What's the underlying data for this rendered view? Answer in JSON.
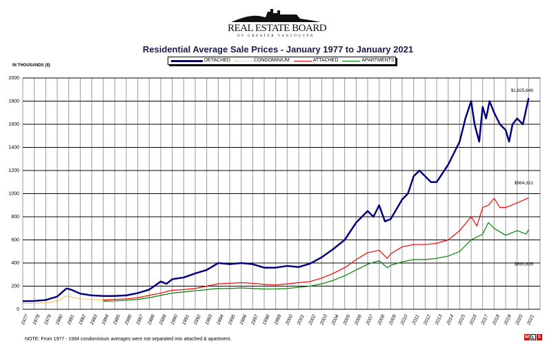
{
  "logo": {
    "name": "REAL ESTATE BOARD",
    "sub": "OF GREATER VANCOUVER"
  },
  "chart_data": {
    "type": "line",
    "title": "Residential Average Sale Prices  -  January 1977 to January 2021",
    "ylabel": "IN THOUSANDS ($)",
    "xlabel": "",
    "ylim": [
      0,
      2000
    ],
    "yticks": [
      0,
      200,
      400,
      600,
      800,
      1000,
      1200,
      1400,
      1600,
      1800,
      2000
    ],
    "xticks": [
      "1977",
      "1978",
      "1979",
      "1980",
      "1981",
      "1982",
      "1983",
      "1984",
      "1985",
      "1986",
      "1987",
      "1988",
      "1989",
      "1990",
      "1991",
      "1992",
      "1993",
      "1994",
      "1995",
      "1996",
      "1997",
      "1998",
      "1999",
      "2000",
      "2001",
      "2002",
      "2003",
      "2004",
      "2005",
      "2006",
      "2007",
      "2008",
      "2009",
      "2010",
      "2011",
      "2012",
      "2013",
      "2014",
      "2015",
      "2016",
      "2017",
      "2018",
      "2019",
      "2020",
      "2021"
    ],
    "grid": true,
    "legend_placement": "top-center",
    "series": [
      {
        "name": "DETACHED",
        "color": "#000080",
        "x": [
          1977,
          1978,
          1979,
          1980,
          1980.8,
          1981.2,
          1982,
          1983,
          1984,
          1985,
          1986,
          1987,
          1988,
          1989,
          1989.5,
          1990,
          1991,
          1992,
          1993,
          1994,
          1995,
          1996,
          1997,
          1998,
          1999,
          2000,
          2001,
          2002,
          2003,
          2004,
          2005,
          2006,
          2007,
          2007.5,
          2008,
          2008.5,
          2009,
          2010,
          2010.5,
          2011,
          2011.5,
          2012,
          2012.5,
          2013,
          2014,
          2015,
          2015.5,
          2016,
          2016.3,
          2016.7,
          2017,
          2017.3,
          2017.6,
          2018,
          2018.5,
          2019,
          2019.3,
          2019.6,
          2020,
          2020.5,
          2021
        ],
        "values": [
          70,
          72,
          80,
          110,
          180,
          170,
          135,
          120,
          115,
          115,
          120,
          140,
          170,
          240,
          220,
          260,
          275,
          310,
          340,
          400,
          390,
          400,
          390,
          360,
          360,
          375,
          365,
          395,
          450,
          520,
          600,
          750,
          850,
          800,
          900,
          760,
          780,
          950,
          1000,
          1150,
          1200,
          1150,
          1100,
          1100,
          1250,
          1450,
          1650,
          1800,
          1600,
          1450,
          1750,
          1650,
          1800,
          1700,
          1600,
          1550,
          1450,
          1600,
          1650,
          1600,
          1826
        ]
      },
      {
        "name": "CONDOMINIUM",
        "color": "#ffa500",
        "x": [
          1977,
          1978,
          1979,
          1980,
          1980.8,
          1981.5,
          1982,
          1983,
          1984
        ],
        "values": [
          50,
          52,
          55,
          70,
          115,
          100,
          90,
          85,
          80
        ]
      },
      {
        "name": "ATTACHED",
        "color": "#ff0000",
        "x": [
          1984,
          1985,
          1986,
          1987,
          1988,
          1989,
          1990,
          1991,
          1992,
          1993,
          1994,
          1995,
          1996,
          1997,
          1998,
          1999,
          2000,
          2001,
          2002,
          2003,
          2004,
          2005,
          2006,
          2007,
          2008,
          2008.7,
          2009,
          2010,
          2011,
          2012,
          2013,
          2014,
          2015,
          2016,
          2016.5,
          2017,
          2017.5,
          2018,
          2018.5,
          2019,
          2020,
          2021
        ],
        "values": [
          80,
          85,
          90,
          100,
          120,
          140,
          165,
          170,
          180,
          200,
          220,
          225,
          230,
          225,
          215,
          210,
          220,
          230,
          240,
          270,
          310,
          360,
          430,
          490,
          510,
          440,
          480,
          540,
          560,
          560,
          570,
          600,
          680,
          800,
          720,
          880,
          900,
          960,
          880,
          880,
          920,
          964
        ]
      },
      {
        "name": "APARTMENTS",
        "color": "#008000",
        "x": [
          1984,
          1985,
          1986,
          1987,
          1988,
          1989,
          1990,
          1991,
          1992,
          1993,
          1994,
          1995,
          1996,
          1997,
          1998,
          1999,
          2000,
          2001,
          2002,
          2003,
          2004,
          2005,
          2006,
          2007,
          2008,
          2008.7,
          2009,
          2010,
          2011,
          2012,
          2013,
          2014,
          2015,
          2016,
          2017,
          2017.5,
          2018,
          2019,
          2020,
          2020.8,
          2021
        ],
        "values": [
          70,
          72,
          78,
          85,
          100,
          120,
          140,
          150,
          160,
          170,
          180,
          180,
          185,
          180,
          175,
          175,
          180,
          190,
          200,
          220,
          250,
          290,
          340,
          390,
          420,
          360,
          380,
          410,
          430,
          430,
          440,
          460,
          500,
          600,
          650,
          750,
          700,
          640,
          680,
          650,
          690
        ]
      }
    ],
    "annotations": [
      "$1,825,649",
      "$964,321",
      "$690,836"
    ]
  },
  "note": "NOTE:  From 1977 - 1984 condominium averages were not separated into attached & apartment.",
  "mls": [
    "M",
    "L",
    "S"
  ]
}
